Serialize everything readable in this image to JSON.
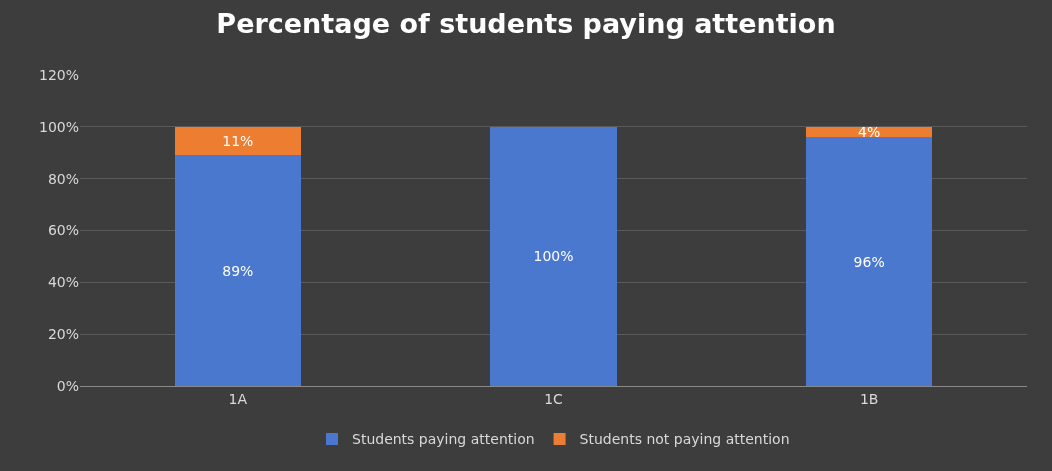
{
  "chart_data": {
    "type": "bar",
    "stacked": true,
    "title": "Percentage of students paying attention",
    "categories": [
      "1A",
      "1C",
      "1B"
    ],
    "series": [
      {
        "name": "Students paying attention",
        "color": "#4a78cf",
        "values": [
          89,
          100,
          96
        ],
        "value_labels": [
          "89%",
          "100%",
          "96%"
        ]
      },
      {
        "name": "Students not paying attention",
        "color": "#ed7d31",
        "values": [
          11,
          null,
          4
        ],
        "value_labels": [
          "11%",
          null,
          "4%"
        ]
      }
    ],
    "ylim": [
      0,
      120
    ],
    "yticks": [
      {
        "value": 0,
        "label": "0%"
      },
      {
        "value": 20,
        "label": "20%"
      },
      {
        "value": 40,
        "label": "40%"
      },
      {
        "value": 60,
        "label": "60%"
      },
      {
        "value": 80,
        "label": "80%"
      },
      {
        "value": 100,
        "label": "100%"
      },
      {
        "value": 120,
        "label": "120%"
      }
    ],
    "grid": "y",
    "legend": "bottom"
  }
}
